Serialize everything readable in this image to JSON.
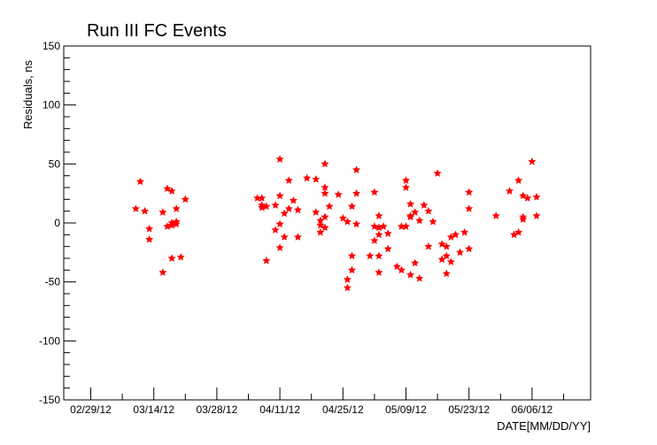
{
  "chart_data": {
    "type": "scatter",
    "title": "Run III FC Events",
    "xlabel": "DATE[MM/DD/YY]",
    "ylabel": "Residuals, ns",
    "x_axis": "date",
    "xlim": [
      "2012-02-23",
      "2012-06-19"
    ],
    "ylim": [
      -150,
      150
    ],
    "x_ticks": [
      "2012-02-29",
      "2012-03-14",
      "2012-03-28",
      "2012-04-11",
      "2012-04-25",
      "2012-05-09",
      "2012-05-23",
      "2012-06-06"
    ],
    "x_tick_labels": [
      "02/29/12",
      "03/14/12",
      "03/28/12",
      "04/11/12",
      "04/25/12",
      "05/09/12",
      "05/23/12",
      "06/06/12"
    ],
    "y_ticks": [
      -150,
      -100,
      -50,
      0,
      50,
      100,
      150
    ],
    "grid": false,
    "marker_color": "#ff0000",
    "series": [
      {
        "x": [
          "2012-03-10",
          "2012-03-11",
          "2012-03-12",
          "2012-03-13",
          "2012-03-13",
          "2012-03-16",
          "2012-03-16",
          "2012-03-17",
          "2012-03-17",
          "2012-03-18",
          "2012-03-18",
          "2012-03-18",
          "2012-03-18",
          "2012-03-19",
          "2012-03-19",
          "2012-03-19",
          "2012-03-20",
          "2012-03-21",
          "2012-04-06",
          "2012-04-07",
          "2012-04-07",
          "2012-04-07",
          "2012-04-08",
          "2012-04-08",
          "2012-04-10",
          "2012-04-10",
          "2012-04-11",
          "2012-04-11",
          "2012-04-11",
          "2012-04-11",
          "2012-04-12",
          "2012-04-12",
          "2012-04-13",
          "2012-04-13",
          "2012-04-14",
          "2012-04-15",
          "2012-04-15",
          "2012-04-17",
          "2012-04-19",
          "2012-04-19",
          "2012-04-20",
          "2012-04-20",
          "2012-04-20",
          "2012-04-21",
          "2012-04-21",
          "2012-04-21",
          "2012-04-21",
          "2012-04-21",
          "2012-04-22",
          "2012-04-24",
          "2012-04-25",
          "2012-04-26",
          "2012-04-26",
          "2012-04-26",
          "2012-04-27",
          "2012-04-27",
          "2012-04-27",
          "2012-04-28",
          "2012-04-28",
          "2012-04-28",
          "2012-05-01",
          "2012-05-02",
          "2012-05-02",
          "2012-05-02",
          "2012-05-03",
          "2012-05-03",
          "2012-05-03",
          "2012-05-03",
          "2012-05-03",
          "2012-05-04",
          "2012-05-05",
          "2012-05-05",
          "2012-05-07",
          "2012-05-08",
          "2012-05-08",
          "2012-05-09",
          "2012-05-09",
          "2012-05-09",
          "2012-05-10",
          "2012-05-10",
          "2012-05-10",
          "2012-05-10",
          "2012-05-11",
          "2012-05-11",
          "2012-05-12",
          "2012-05-12",
          "2012-05-13",
          "2012-05-14",
          "2012-05-14",
          "2012-05-15",
          "2012-05-16",
          "2012-05-17",
          "2012-05-17",
          "2012-05-18",
          "2012-05-18",
          "2012-05-18",
          "2012-05-19",
          "2012-05-19",
          "2012-05-20",
          "2012-05-21",
          "2012-05-22",
          "2012-05-23",
          "2012-05-23",
          "2012-05-23",
          "2012-05-29",
          "2012-06-01",
          "2012-06-02",
          "2012-06-03",
          "2012-06-03",
          "2012-06-04",
          "2012-06-04",
          "2012-06-04",
          "2012-06-05",
          "2012-06-06",
          "2012-06-07",
          "2012-06-07"
        ],
        "y": [
          12,
          35,
          10,
          -14,
          -5,
          -42,
          9,
          29,
          -3,
          -2,
          27,
          -30,
          0,
          12,
          1,
          -1,
          -29,
          20,
          21,
          15,
          13,
          21,
          -32,
          14,
          -6,
          15,
          54,
          -1,
          23,
          -21,
          8,
          -12,
          12,
          36,
          19,
          -12,
          11,
          38,
          37,
          9,
          2,
          -2,
          -8,
          30,
          -4,
          5,
          50,
          25,
          14,
          24,
          4,
          1,
          -55,
          -48,
          -40,
          14,
          -28,
          45,
          -1,
          25,
          -28,
          -3,
          -15,
          26,
          -28,
          -10,
          6,
          -4,
          -42,
          -3,
          -22,
          -9,
          -37,
          -3,
          -40,
          -3,
          30,
          36,
          16,
          5,
          6,
          -44,
          -34,
          9,
          -47,
          2,
          15,
          10,
          -20,
          1,
          42,
          -31,
          -18,
          -20,
          -43,
          -28,
          -12,
          -33,
          -10,
          -25,
          -8,
          -22,
          26,
          12,
          6,
          27,
          -10,
          36,
          -8,
          5,
          3,
          23,
          21,
          52,
          6,
          22
        ]
      }
    ]
  }
}
